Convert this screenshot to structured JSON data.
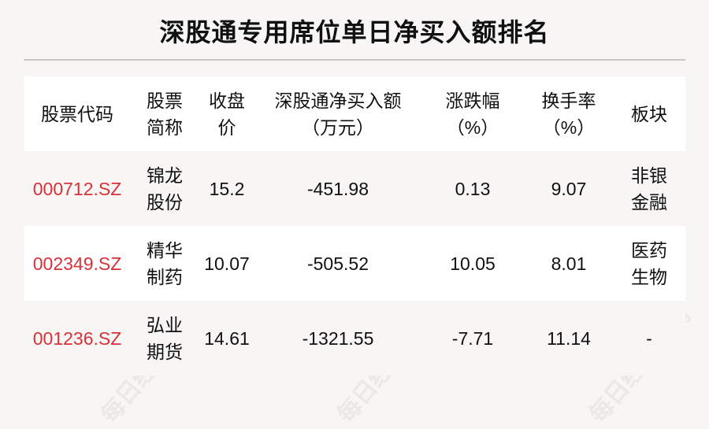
{
  "title": "深股通专用席位单日净买入额排名",
  "watermark": "每日经济新闻",
  "headers": [
    "股票代码",
    "股票\n简称",
    "收盘\n价",
    "深股通净买入额\n（万元）",
    "涨跌幅\n（%）",
    "换手率\n（%）",
    "板块"
  ],
  "header_lines": [
    [
      "股票代码"
    ],
    [
      "股票",
      "简称"
    ],
    [
      "收盘",
      "价"
    ],
    [
      "深股通净买入额",
      "（万元）"
    ],
    [
      "涨跌幅",
      "（%）"
    ],
    [
      "换手率",
      "（%）"
    ],
    [
      "板块"
    ]
  ],
  "rows": [
    {
      "code": "000712.SZ",
      "name": [
        "锦龙",
        "股份"
      ],
      "close": "15.2",
      "net_buy": "-451.98",
      "change": "0.13",
      "turnover": "9.07",
      "sector": [
        "非银",
        "金融"
      ]
    },
    {
      "code": "002349.SZ",
      "name": [
        "精华",
        "制药"
      ],
      "close": "10.07",
      "net_buy": "-505.52",
      "change": "10.05",
      "turnover": "8.01",
      "sector": [
        "医药",
        "生物"
      ]
    },
    {
      "code": "001236.SZ",
      "name": [
        "弘业",
        "期货"
      ],
      "close": "14.61",
      "net_buy": "-1321.55",
      "change": "-7.71",
      "turnover": "11.14",
      "sector": [
        "-"
      ]
    }
  ],
  "colors": {
    "code": "#d9313a",
    "background": "#f8f5f5"
  }
}
